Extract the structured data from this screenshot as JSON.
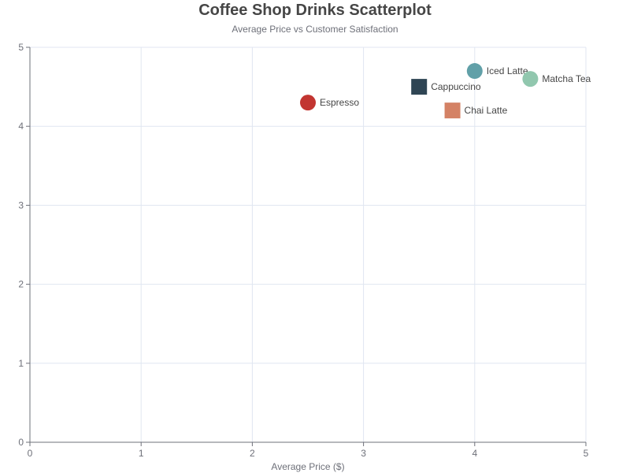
{
  "chart_data": {
    "type": "scatter",
    "title": "Coffee Shop Drinks Scatterplot",
    "subtitle": "Average Price vs Customer Satisfaction",
    "xlabel": "Average Price ($)",
    "ylabel": "",
    "xlim": [
      0,
      5
    ],
    "ylim": [
      0,
      5
    ],
    "xticks": [
      0,
      1,
      2,
      3,
      4,
      5
    ],
    "yticks": [
      0,
      1,
      2,
      3,
      4,
      5
    ],
    "grid": true,
    "points": [
      {
        "label": "Espresso",
        "x": 2.5,
        "y": 4.3,
        "shape": "circle",
        "color": "#c23531"
      },
      {
        "label": "Cappuccino",
        "x": 3.5,
        "y": 4.5,
        "shape": "square",
        "color": "#2f4554"
      },
      {
        "label": "Iced Latte",
        "x": 4.0,
        "y": 4.7,
        "shape": "circle",
        "color": "#61a0a8"
      },
      {
        "label": "Chai Latte",
        "x": 3.8,
        "y": 4.2,
        "shape": "square",
        "color": "#d48265"
      },
      {
        "label": "Matcha Tea",
        "x": 4.5,
        "y": 4.6,
        "shape": "circle",
        "color": "#91c7ae"
      }
    ]
  }
}
